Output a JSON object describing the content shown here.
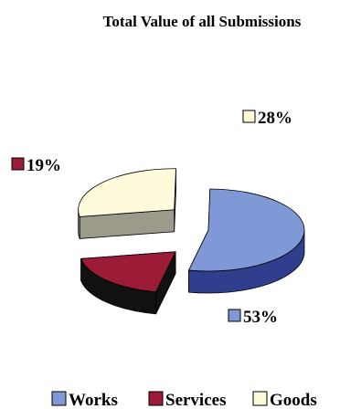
{
  "chart_data": {
    "type": "pie",
    "title": "Total Value of all Submissions",
    "categories": [
      "Works",
      "Services",
      "Goods"
    ],
    "values": [
      53,
      19,
      28
    ],
    "unit": "%",
    "data_labels": [
      "53%",
      "19%",
      "28%"
    ],
    "colors": {
      "Works": "#7e99d6",
      "Services": "#9c1c37",
      "Goods": "#fdfbdb"
    },
    "side_colors": {
      "Works": "#2f3f8e",
      "Services": "#111111",
      "Goods": "#9c9a8a"
    },
    "three_d": true,
    "exploded": [
      "Services",
      "Goods"
    ],
    "legend_position": "bottom"
  }
}
